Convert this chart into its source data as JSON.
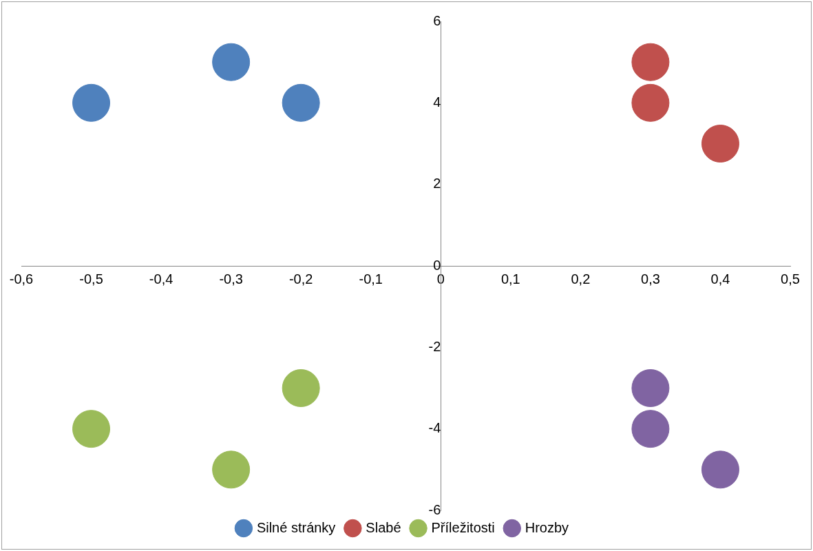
{
  "chart_data": {
    "type": "scatter",
    "marker": "circle",
    "legend": "bottom",
    "xlim": [
      -0.6,
      0.5
    ],
    "xticks": [
      {
        "value": -0.6,
        "label": "-0,6"
      },
      {
        "value": -0.5,
        "label": "-0,5"
      },
      {
        "value": -0.4,
        "label": "-0,4"
      },
      {
        "value": -0.3,
        "label": "-0,3"
      },
      {
        "value": -0.2,
        "label": "-0,2"
      },
      {
        "value": -0.1,
        "label": "-0,1"
      },
      0,
      {
        "value": 0.1,
        "label": "0,1"
      },
      {
        "value": 0.2,
        "label": "0,2"
      },
      {
        "value": 0.3,
        "label": "0,3"
      },
      {
        "value": 0.4,
        "label": "0,4"
      },
      {
        "value": 0.5,
        "label": "0,5"
      }
    ],
    "ylim": [
      -6,
      6
    ],
    "yticks": [
      -6,
      -4,
      -2,
      0,
      2,
      4,
      6
    ],
    "series": [
      {
        "name": "Silné stránky",
        "color": "#4f81bd",
        "x": [
          -0.5,
          -0.3,
          -0.2
        ],
        "values": [
          4,
          5,
          4
        ]
      },
      {
        "name": "Slabé",
        "color": "#c0504d",
        "x": [
          0.3,
          0.3,
          0.4
        ],
        "values": [
          5,
          4,
          3
        ]
      },
      {
        "name": "Příležitosti",
        "color": "#9bbb59",
        "x": [
          -0.5,
          -0.3,
          -0.2
        ],
        "values": [
          -4,
          -5,
          -3
        ]
      },
      {
        "name": "Hrozby",
        "color": "#8064a2",
        "x": [
          0.3,
          0.3,
          0.4
        ],
        "values": [
          -3,
          -4,
          -5
        ]
      }
    ]
  }
}
